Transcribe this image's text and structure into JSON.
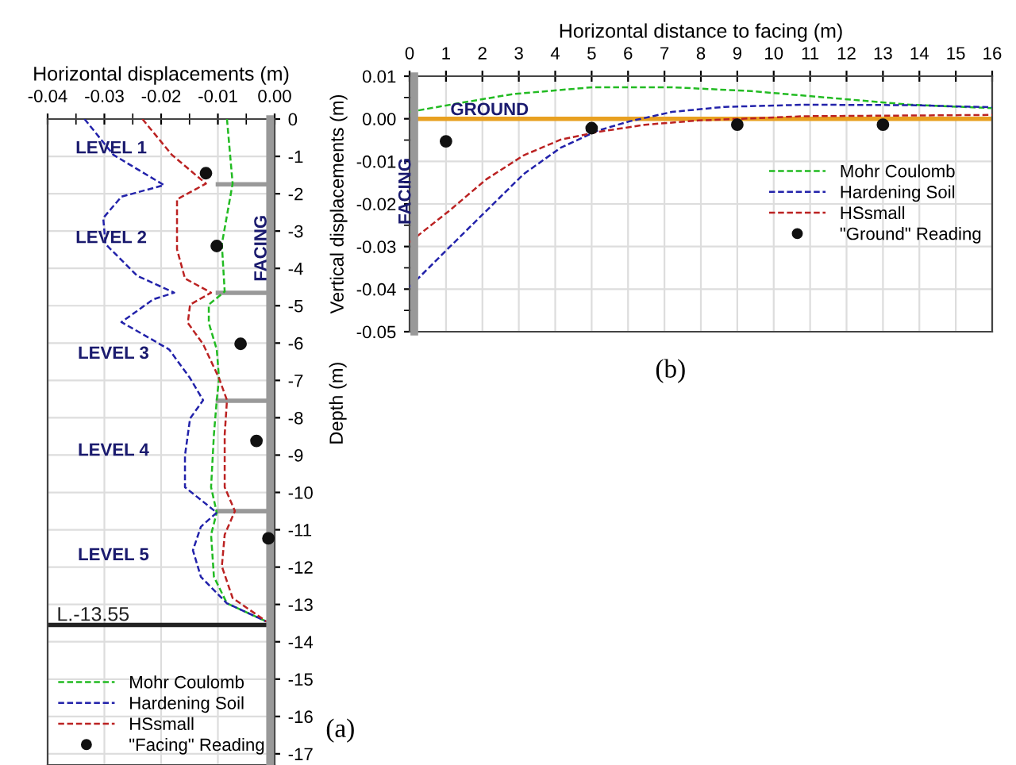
{
  "chart_data": [
    {
      "type": "line",
      "xlabel": "Horizontal displacements (m)",
      "ylabel": "Depth (m)",
      "xlim": [
        -0.04,
        0
      ],
      "ylim": [
        -17.3,
        0
      ],
      "xticks": [
        {
          "value": -0.04,
          "label": "-0.04"
        },
        {
          "value": -0.035,
          "label": null
        },
        {
          "value": -0.03,
          "label": "-0.03"
        },
        {
          "value": -0.025,
          "label": null
        },
        {
          "value": -0.02,
          "label": "-0.02"
        },
        {
          "value": -0.015,
          "label": null
        },
        {
          "value": -0.01,
          "label": "-0.01"
        },
        {
          "value": -0.005,
          "label": null
        },
        {
          "value": 0,
          "label": "0.00"
        }
      ],
      "yticks": [
        0,
        -1,
        -2,
        -3,
        -4,
        -5,
        -6,
        -7,
        -8,
        -9,
        -10,
        -11,
        -12,
        -13,
        -14,
        -15,
        -16,
        -17
      ],
      "grid": true,
      "legend": "bottom left",
      "marker": "none",
      "line_style": "dashed",
      "series": [
        {
          "name": "Mohr Coulomb",
          "color": "#22bb22",
          "type": "line",
          "x": [
            -0.0084,
            -0.0074,
            -0.0093,
            -0.0088,
            -0.0116,
            -0.0116,
            -0.0102,
            -0.0098,
            -0.0102,
            -0.0107,
            -0.0112,
            -0.0102,
            -0.0112,
            -0.0107,
            -0.0084,
            -0.0014
          ],
          "values": [
            0,
            -1.73,
            -3.35,
            -4.62,
            -4.97,
            -5.46,
            -6.17,
            -6.94,
            -7.53,
            -8.45,
            -9.86,
            -10.54,
            -11.13,
            -12.26,
            -12.97,
            -13.46
          ]
        },
        {
          "name": "Hardening Soil",
          "color": "#2222aa",
          "type": "line",
          "x": [
            -0.0335,
            -0.0284,
            -0.0195,
            -0.027,
            -0.0302,
            -0.0298,
            -0.0242,
            -0.0177,
            -0.0214,
            -0.027,
            -0.0242,
            -0.0186,
            -0.0149,
            -0.0126,
            -0.0149,
            -0.0158,
            -0.0158,
            -0.0102,
            -0.013,
            -0.0144,
            -0.013,
            -0.0084,
            -0.0014
          ],
          "values": [
            0,
            -0.96,
            -1.77,
            -2.08,
            -2.65,
            -3.35,
            -4.2,
            -4.65,
            -4.83,
            -5.44,
            -5.68,
            -6.17,
            -6.94,
            -7.53,
            -8.02,
            -9.01,
            -9.86,
            -10.54,
            -10.92,
            -11.55,
            -12.26,
            -12.97,
            -13.46
          ]
        },
        {
          "name": "HSsmall",
          "color": "#bb2222",
          "type": "line",
          "x": [
            -0.0233,
            -0.0181,
            -0.0121,
            -0.0172,
            -0.0172,
            -0.0158,
            -0.0112,
            -0.0149,
            -0.0153,
            -0.0126,
            -0.0098,
            -0.0084,
            -0.0088,
            -0.0088,
            -0.007,
            -0.0088,
            -0.0093,
            -0.0074,
            -0.0014
          ],
          "values": [
            0,
            -0.96,
            -1.73,
            -2.15,
            -3.49,
            -4.27,
            -4.65,
            -4.97,
            -5.46,
            -6.03,
            -6.94,
            -7.53,
            -8.45,
            -9.86,
            -10.5,
            -11.13,
            -11.98,
            -12.83,
            -13.46
          ]
        },
        {
          "name": "\"Facing\" Reading",
          "color": "#111111",
          "type": "scatter",
          "marker": "circle",
          "x": [
            -0.0121,
            -0.0102,
            -0.006,
            -0.0032,
            -0.0011
          ],
          "values": [
            -1.45,
            -3.4,
            -6.02,
            -8.62,
            -11.23
          ]
        }
      ],
      "ref_lines": [
        {
          "axis": "x",
          "value": -0.0008,
          "label": "FACING",
          "color": "#999999"
        },
        {
          "axis": "y",
          "value": -13.55,
          "label": "L.-13.55",
          "color": "#222222"
        }
      ],
      "annotations": [
        "LEVEL 1",
        "LEVEL 2",
        "LEVEL 3",
        "LEVEL 4",
        "LEVEL 5",
        "(a)"
      ]
    },
    {
      "type": "line",
      "xlabel": "Horizontal distance to facing (m)",
      "ylabel": "Vertical displacements (m)",
      "xlim": [
        0,
        16
      ],
      "ylim": [
        -0.05,
        0.01
      ],
      "xticks": [
        0,
        1,
        2,
        3,
        4,
        5,
        6,
        7,
        8,
        9,
        10,
        11,
        12,
        13,
        14,
        15,
        16
      ],
      "yticks": [
        {
          "value": -0.05,
          "label": "-0.05"
        },
        {
          "value": -0.045,
          "label": null
        },
        {
          "value": -0.04,
          "label": "-0.04"
        },
        {
          "value": -0.035,
          "label": null
        },
        {
          "value": -0.03,
          "label": "-0.03"
        },
        {
          "value": -0.025,
          "label": null
        },
        {
          "value": -0.02,
          "label": "-0.02"
        },
        {
          "value": -0.015,
          "label": null
        },
        {
          "value": -0.01,
          "label": "-0.01"
        },
        {
          "value": -0.005,
          "label": null
        },
        {
          "value": 0,
          "label": "0.00"
        },
        {
          "value": 0.005,
          "label": null
        },
        {
          "value": 0.01,
          "label": "0.01"
        }
      ],
      "grid": true,
      "legend": "right",
      "marker": "none",
      "line_style": "dashed",
      "series": [
        {
          "name": "Mohr Coulomb",
          "color": "#22bb22",
          "type": "line",
          "x": [
            0,
            1.38,
            2.84,
            5.02,
            7.2,
            9.38,
            11.56,
            13.75,
            16
          ],
          "values": [
            0.0016,
            0.0037,
            0.0058,
            0.0074,
            0.0074,
            0.0065,
            0.0049,
            0.0033,
            0.0025
          ]
        },
        {
          "name": "Hardening Soil",
          "color": "#2222aa",
          "type": "line",
          "x": [
            0,
            1.09,
            2.11,
            3.13,
            4.15,
            5.16,
            6.04,
            7.2,
            8.65,
            10.84,
            13.75,
            16
          ],
          "values": [
            -0.0395,
            -0.0302,
            -0.0216,
            -0.013,
            -0.0068,
            -0.0028,
            -0.0006,
            0.0016,
            0.0028,
            0.0033,
            0.0032,
            0.0027
          ]
        },
        {
          "name": "HSsmall",
          "color": "#bb2222",
          "type": "line",
          "x": [
            0,
            1.09,
            2.11,
            3.13,
            4.15,
            5.16,
            6.47,
            7.93,
            10.84,
            16
          ],
          "values": [
            -0.029,
            -0.0216,
            -0.0142,
            -0.0086,
            -0.0049,
            -0.0031,
            -0.0014,
            -0.0004,
            0.0006,
            0.0009
          ]
        },
        {
          "name": "\"Ground\" Reading",
          "color": "#111111",
          "type": "scatter",
          "marker": "circle",
          "x": [
            1,
            5,
            9,
            13
          ],
          "values": [
            -0.0053,
            -0.0022,
            -0.0014,
            -0.0014
          ]
        }
      ],
      "ref_lines": [
        {
          "axis": "x",
          "value": 0.13,
          "label": "FACING",
          "color": "#999999"
        },
        {
          "axis": "y",
          "value": 0,
          "label": "GROUND",
          "color": "#e8a020"
        }
      ],
      "annotations": [
        "(b)"
      ]
    }
  ]
}
